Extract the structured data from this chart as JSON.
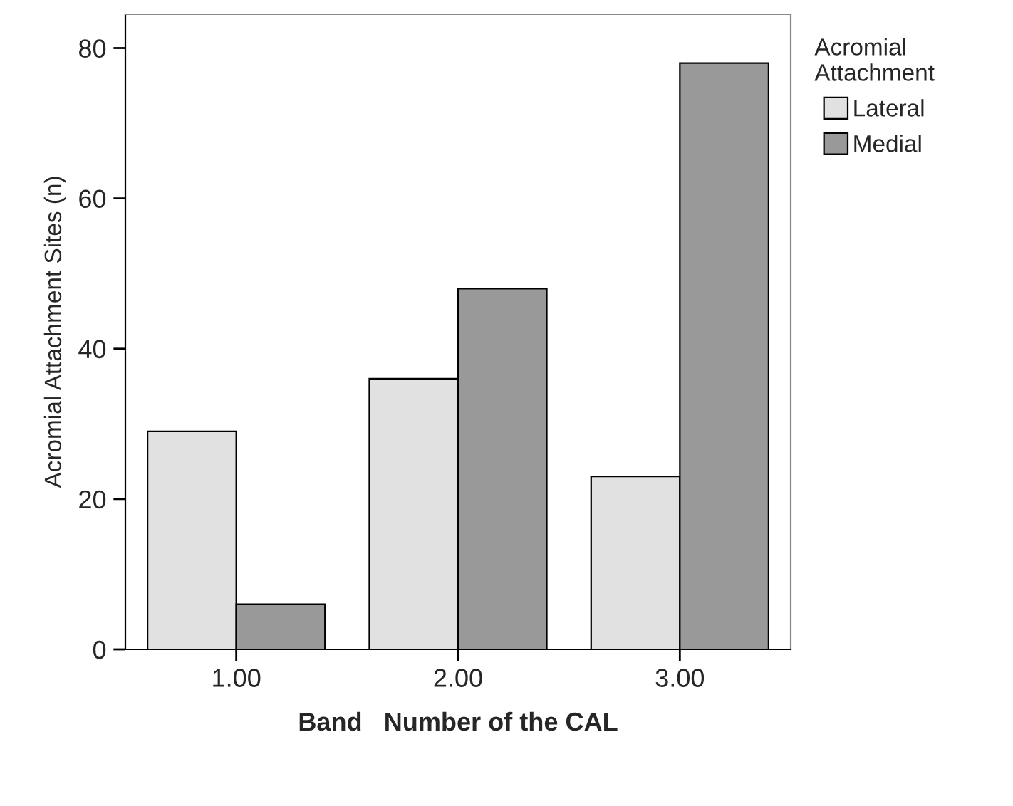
{
  "chart_data": {
    "type": "bar",
    "xlabel": "Band   Number of the CAL",
    "ylabel": "Acromial Attachment Sites (n)",
    "legend_title": "Acromial\nAttachment",
    "categories": [
      "1.00",
      "2.00",
      "3.00"
    ],
    "series": [
      {
        "name": "Lateral",
        "color": "#e1e1e1",
        "values": [
          29,
          36,
          23
        ]
      },
      {
        "name": "Medial",
        "color": "#999999",
        "values": [
          6,
          48,
          78
        ]
      }
    ],
    "ylim": [
      0,
      84.5
    ],
    "yticks": [
      0,
      20,
      40,
      60,
      80
    ],
    "grid": false,
    "legend": "top right"
  }
}
